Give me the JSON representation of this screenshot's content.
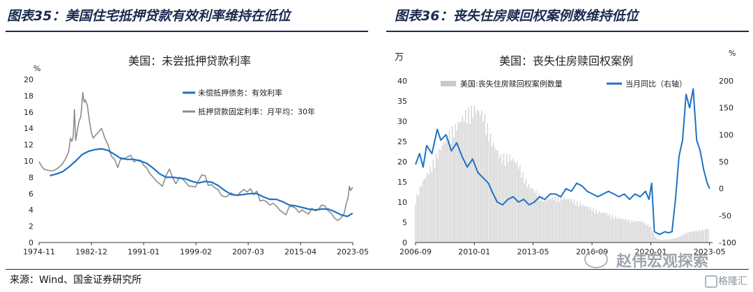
{
  "left_panel": {
    "figure_title": "图表35：美国住宅抵押贷款有效利率维持在低位"
  },
  "right_panel": {
    "figure_title": "图表36：丧失住房赎回权案例数维持低位"
  },
  "source": "来源：Wind、国金证券研究所",
  "watermark": {
    "text": "赵伟宏观探索",
    "brand": "格隆汇"
  },
  "colors": {
    "title": "#1a2a4e",
    "blue": "#1f72c4",
    "gray": "#8c8c8c",
    "bar": "#c9c9c9"
  },
  "chart_data": [
    {
      "type": "line",
      "title": "美国：未尝抵押贷款利率",
      "ylabel": "%",
      "ylim": [
        0,
        20
      ],
      "y_ticks": [
        0,
        2,
        4,
        6,
        8,
        10,
        12,
        14,
        16,
        18,
        20
      ],
      "x_tick_labels": [
        "1974-11",
        "1982-12",
        "1991-01",
        "1999-02",
        "2007-03",
        "2015-04",
        "2023-05"
      ],
      "x_tick_years": [
        1974.83,
        1982.92,
        1991.0,
        1999.08,
        2007.17,
        2015.25,
        2023.33
      ],
      "xlim": [
        1974.83,
        2023.33
      ],
      "legend_position": "top-right",
      "series": [
        {
          "name": "未偿抵押债务：有效利率",
          "color": "#1f72c4",
          "x": [
            1976.5,
            1977.5,
            1978.5,
            1979.5,
            1980.5,
            1981.5,
            1982.5,
            1983.5,
            1984.5,
            1985.5,
            1986.5,
            1987.5,
            1988.5,
            1989.5,
            1990.5,
            1991.5,
            1992.5,
            1993.5,
            1994.5,
            1995.5,
            1996.5,
            1997.5,
            1998.5,
            1999.5,
            2000.5,
            2001.5,
            2002.5,
            2003.5,
            2004.5,
            2005.5,
            2006.5,
            2007.5,
            2008.5,
            2009.5,
            2010.5,
            2011.5,
            2012.5,
            2013.5,
            2014.5,
            2015.5,
            2016.5,
            2017.5,
            2018.5,
            2019.5,
            2020.5,
            2021.5,
            2022.5,
            2023.3
          ],
          "y": [
            8.2,
            8.4,
            8.7,
            9.3,
            10.0,
            10.8,
            11.2,
            11.4,
            11.5,
            11.3,
            10.8,
            10.3,
            10.2,
            10.2,
            10.0,
            9.7,
            9.1,
            8.4,
            8.0,
            8.0,
            7.9,
            7.8,
            7.5,
            7.3,
            7.5,
            7.4,
            7.0,
            6.4,
            5.9,
            5.8,
            5.9,
            6.0,
            6.0,
            5.6,
            5.3,
            5.3,
            5.0,
            4.6,
            4.5,
            4.3,
            4.1,
            4.0,
            4.1,
            4.1,
            3.8,
            3.4,
            3.2,
            3.6
          ]
        },
        {
          "name": "抵押贷款固定利率：月平均：30年",
          "color": "#8c8c8c",
          "x": [
            1974.83,
            1975.2,
            1975.6,
            1976.0,
            1976.5,
            1977.0,
            1977.5,
            1978.0,
            1978.5,
            1979.0,
            1979.4,
            1979.7,
            1979.9,
            1980.1,
            1980.3,
            1980.5,
            1980.8,
            1981.0,
            1981.3,
            1981.6,
            1981.8,
            1982.0,
            1982.3,
            1982.6,
            1982.9,
            1983.2,
            1983.6,
            1984.0,
            1984.5,
            1985.0,
            1985.5,
            1986.0,
            1986.5,
            1987.0,
            1987.5,
            1988.0,
            1988.5,
            1989.0,
            1989.5,
            1990.0,
            1990.5,
            1991.0,
            1991.5,
            1992.0,
            1992.5,
            1993.0,
            1993.5,
            1993.9,
            1994.5,
            1995.0,
            1995.5,
            1996.0,
            1996.5,
            1997.0,
            1997.5,
            1998.0,
            1998.5,
            1999.0,
            1999.5,
            2000.0,
            2000.5,
            2001.0,
            2001.5,
            2002.0,
            2002.5,
            2003.0,
            2003.5,
            2004.0,
            2004.5,
            2005.0,
            2005.5,
            2006.0,
            2006.5,
            2007.0,
            2007.5,
            2008.0,
            2008.5,
            2009.0,
            2009.5,
            2010.0,
            2010.5,
            2011.0,
            2011.5,
            2012.0,
            2012.5,
            2013.0,
            2013.5,
            2014.0,
            2014.5,
            2015.0,
            2015.5,
            2016.0,
            2016.5,
            2017.0,
            2017.5,
            2018.0,
            2018.5,
            2019.0,
            2019.5,
            2020.0,
            2020.5,
            2021.0,
            2021.5,
            2022.0,
            2022.3,
            2022.6,
            2022.8,
            2023.0,
            2023.33
          ],
          "y": [
            9.9,
            9.4,
            9.0,
            8.9,
            8.8,
            8.8,
            9.0,
            9.3,
            9.7,
            10.4,
            11.1,
            12.8,
            12.4,
            12.9,
            16.3,
            12.5,
            14.0,
            14.8,
            15.5,
            18.4,
            17.2,
            17.5,
            16.8,
            15.0,
            13.5,
            12.8,
            13.2,
            13.5,
            14.0,
            12.8,
            12.0,
            10.6,
            10.2,
            9.2,
            10.4,
            10.3,
            10.5,
            10.7,
            9.9,
            10.1,
            10.1,
            9.5,
            9.1,
            8.4,
            8.0,
            7.5,
            7.2,
            6.9,
            8.3,
            9.0,
            7.9,
            7.2,
            8.0,
            7.8,
            7.4,
            6.9,
            6.9,
            6.8,
            7.6,
            8.3,
            8.2,
            7.0,
            7.1,
            6.7,
            6.5,
            5.8,
            5.6,
            5.7,
            6.1,
            5.8,
            5.8,
            6.2,
            6.5,
            6.2,
            6.6,
            5.9,
            6.3,
            5.1,
            5.2,
            5.0,
            4.6,
            4.8,
            4.5,
            4.0,
            3.7,
            3.4,
            4.4,
            4.4,
            4.2,
            3.7,
            4.0,
            3.7,
            3.5,
            4.2,
            3.9,
            4.0,
            4.6,
            4.5,
            3.9,
            3.6,
            3.0,
            2.7,
            3.0,
            3.6,
            4.7,
            5.5,
            6.9,
            6.4,
            6.8
          ]
        }
      ]
    },
    {
      "type": "bar",
      "title": "美国：丧失住房赎回权案例",
      "ylabel_left": "万",
      "ylabel_right": "%",
      "ylim_left": [
        0,
        40
      ],
      "ylim_right": [
        -100,
        200
      ],
      "y_ticks_left": [
        0,
        5,
        10,
        15,
        20,
        25,
        30,
        35,
        40
      ],
      "y_ticks_right": [
        -100,
        -50,
        0,
        50,
        100,
        150,
        200
      ],
      "x_tick_labels": [
        "2006-09",
        "2010-01",
        "2013-05",
        "2016-09",
        "2020-01",
        "2023-05"
      ],
      "x_tick_years": [
        2006.67,
        2010.0,
        2013.33,
        2016.67,
        2020.0,
        2023.33
      ],
      "xlim": [
        2006.67,
        2023.5
      ],
      "legend_position": "top",
      "series": [
        {
          "name": "美国:丧失住房赎回权案例数量",
          "type": "bar",
          "axis": "left",
          "color": "#c9c9c9",
          "x": [
            2006.67,
            2007.0,
            2007.5,
            2008.0,
            2008.5,
            2009.0,
            2009.5,
            2010.0,
            2010.5,
            2011.0,
            2011.5,
            2012.0,
            2012.5,
            2013.0,
            2013.5,
            2014.0,
            2014.5,
            2015.0,
            2015.5,
            2016.0,
            2016.5,
            2017.0,
            2017.5,
            2018.0,
            2018.5,
            2019.0,
            2019.5,
            2020.0,
            2020.3,
            2020.6,
            2021.0,
            2021.5,
            2022.0,
            2022.5,
            2023.0,
            2023.33
          ],
          "y": [
            11.0,
            15.0,
            19.0,
            23.5,
            27.5,
            30.0,
            33.0,
            34.5,
            33.0,
            26.0,
            22.0,
            22.0,
            20.0,
            15.0,
            13.0,
            11.0,
            11.5,
            11.5,
            11.0,
            10.0,
            9.0,
            8.0,
            7.5,
            6.5,
            6.0,
            5.5,
            5.5,
            4.0,
            1.0,
            0.7,
            0.8,
            1.2,
            2.5,
            3.0,
            3.3,
            3.6
          ]
        },
        {
          "name": "当月同比（右轴）",
          "type": "line",
          "axis": "right",
          "color": "#1f72c4",
          "x": [
            2006.67,
            2006.9,
            2007.1,
            2007.3,
            2007.6,
            2007.9,
            2008.1,
            2008.4,
            2008.7,
            2009.0,
            2009.3,
            2009.6,
            2009.9,
            2010.2,
            2010.5,
            2010.8,
            2011.0,
            2011.3,
            2011.6,
            2011.9,
            2012.2,
            2012.5,
            2012.8,
            2013.1,
            2013.4,
            2013.7,
            2014.0,
            2014.3,
            2014.6,
            2014.9,
            2015.2,
            2015.5,
            2015.8,
            2016.1,
            2016.4,
            2016.7,
            2017.0,
            2017.3,
            2017.6,
            2017.9,
            2018.2,
            2018.5,
            2018.8,
            2019.1,
            2019.4,
            2019.7,
            2019.9,
            2020.05,
            2020.2,
            2020.5,
            2020.8,
            2021.0,
            2021.2,
            2021.4,
            2021.6,
            2021.8,
            2022.0,
            2022.2,
            2022.4,
            2022.6,
            2022.8,
            2023.0,
            2023.2,
            2023.33
          ],
          "y": [
            45,
            65,
            40,
            80,
            65,
            110,
            90,
            100,
            70,
            85,
            60,
            40,
            55,
            30,
            20,
            10,
            -5,
            -25,
            -30,
            -20,
            -15,
            -25,
            -20,
            -30,
            -25,
            -15,
            -20,
            -10,
            -10,
            -15,
            0,
            -5,
            10,
            5,
            -5,
            -10,
            -15,
            -10,
            -5,
            -10,
            -15,
            -10,
            -20,
            -10,
            -15,
            -5,
            -20,
            10,
            -80,
            -85,
            -80,
            -82,
            -80,
            -20,
            60,
            90,
            175,
            150,
            185,
            90,
            70,
            35,
            10,
            0
          ]
        }
      ]
    }
  ]
}
